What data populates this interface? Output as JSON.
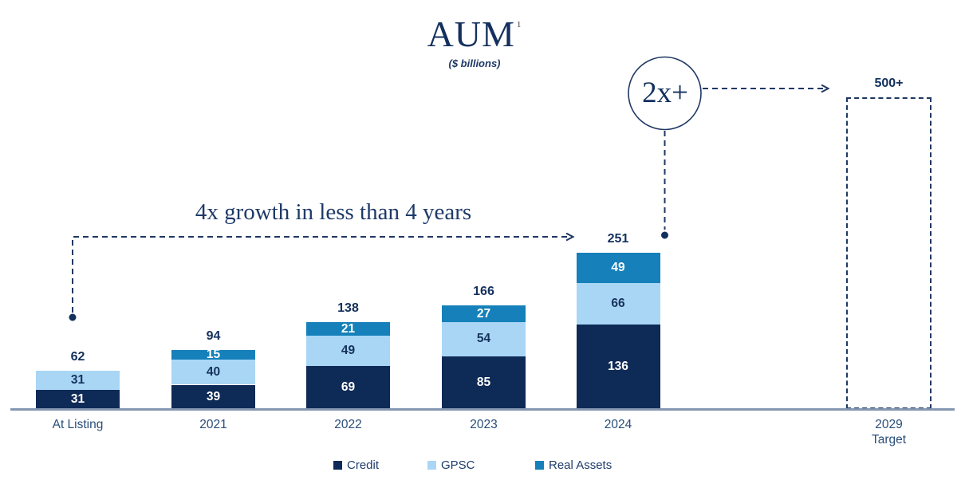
{
  "header": {
    "title": "AUM",
    "footnote_marker": "1",
    "subtitle": "($ billions)"
  },
  "annotations": {
    "growth_text": "4x growth in less than 4 years",
    "multiplier_text": "2x+"
  },
  "colors": {
    "credit": "#0E2A56",
    "gpsc": "#A9D6F5",
    "real_assets": "#1580B9",
    "navy_text": "#13305C",
    "white_text": "#FFFFFF",
    "dashed_line": "#1F3864",
    "axis_line": "#8496B0"
  },
  "chart_data": {
    "type": "bar",
    "stacked": true,
    "title": "AUM",
    "subtitle": "($ billions)",
    "unit": "$ billions",
    "categories": [
      "At Listing",
      "2021",
      "2022",
      "2023",
      "2024"
    ],
    "series": [
      {
        "name": "Credit",
        "color": "#0E2A56",
        "label_color": "#FFFFFF",
        "values": [
          31,
          39,
          69,
          85,
          136
        ]
      },
      {
        "name": "GPSC",
        "color": "#A9D6F5",
        "label_color": "#16325B",
        "values": [
          31,
          40,
          49,
          54,
          66
        ]
      },
      {
        "name": "Real Assets",
        "color": "#1580B9",
        "label_color": "#FFFFFF",
        "values": [
          0,
          15,
          21,
          27,
          49
        ]
      }
    ],
    "totals": [
      "62",
      "94",
      "138",
      "166",
      "251"
    ],
    "target": {
      "category_label": "2029\nTarget",
      "value_label": "500+",
      "value": 500
    },
    "legend": [
      "Credit",
      "GPSC",
      "Real Assets"
    ],
    "legend_position": "bottom",
    "ylim": [
      0,
      500
    ],
    "grid": false
  }
}
